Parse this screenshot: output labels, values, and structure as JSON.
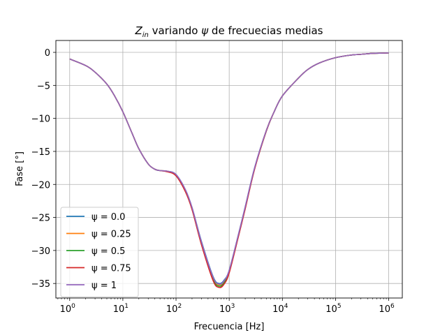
{
  "chart_data": {
    "type": "line",
    "title": {
      "var": "Z",
      "sub": "in",
      "middle": " variando ",
      "greek": "ψ",
      "rest": " de frecuecias medias"
    },
    "xlabel": "Frecuencia [Hz]",
    "ylabel": "Fase [°]",
    "xscale": "log",
    "xlim": [
      0.55,
      1800000
    ],
    "ylim": [
      -37.2,
      1.8
    ],
    "xticks": [
      {
        "value": 1,
        "base": "10",
        "exp": "0"
      },
      {
        "value": 10,
        "base": "10",
        "exp": "1"
      },
      {
        "value": 100,
        "base": "10",
        "exp": "2"
      },
      {
        "value": 1000,
        "base": "10",
        "exp": "3"
      },
      {
        "value": 10000,
        "base": "10",
        "exp": "4"
      },
      {
        "value": 100000,
        "base": "10",
        "exp": "5"
      },
      {
        "value": 1000000,
        "base": "10",
        "exp": "6"
      }
    ],
    "yticks": [
      {
        "value": 0,
        "label": "0"
      },
      {
        "value": -5,
        "label": "−5"
      },
      {
        "value": -10,
        "label": "−10"
      },
      {
        "value": -15,
        "label": "−15"
      },
      {
        "value": -20,
        "label": "−20"
      },
      {
        "value": -25,
        "label": "−25"
      },
      {
        "value": -30,
        "label": "−30"
      },
      {
        "value": -35,
        "label": "−35"
      }
    ],
    "grid": true,
    "legend_placement": "lower-left",
    "x": [
      1,
      2,
      3,
      5,
      7,
      10,
      15,
      20,
      30,
      40,
      50,
      70,
      100,
      150,
      200,
      300,
      500,
      650,
      800,
      1000,
      1500,
      2000,
      3000,
      5000,
      7000,
      10000,
      20000,
      30000,
      50000,
      100000,
      200000,
      300000,
      500000,
      1000000
    ],
    "series": [
      {
        "name": "ψ = 0.0",
        "color": "#1f77b4",
        "values": [
          -1.0,
          -2.0,
          -3.0,
          -4.8,
          -6.6,
          -9.0,
          -12.3,
          -14.6,
          -16.9,
          -17.7,
          -17.9,
          -18.0,
          -18.5,
          -20.8,
          -23.5,
          -28.6,
          -34.0,
          -35.0,
          -34.5,
          -33.0,
          -27.5,
          -23.4,
          -17.5,
          -11.8,
          -9.0,
          -6.6,
          -3.9,
          -2.6,
          -1.6,
          -0.8,
          -0.4,
          -0.3,
          -0.15,
          -0.08
        ]
      },
      {
        "name": "ψ = 0.25",
        "color": "#ff7f0e",
        "values": [
          -1.0,
          -2.0,
          -3.0,
          -4.8,
          -6.6,
          -9.0,
          -12.3,
          -14.6,
          -16.9,
          -17.7,
          -17.9,
          -18.0,
          -18.55,
          -20.9,
          -23.6,
          -28.8,
          -34.2,
          -35.2,
          -34.7,
          -33.1,
          -27.6,
          -23.5,
          -17.6,
          -11.8,
          -9.0,
          -6.6,
          -3.9,
          -2.6,
          -1.6,
          -0.8,
          -0.4,
          -0.3,
          -0.15,
          -0.08
        ]
      },
      {
        "name": "ψ = 0.5",
        "color": "#2ca02c",
        "values": [
          -1.0,
          -2.0,
          -3.0,
          -4.8,
          -6.6,
          -9.0,
          -12.3,
          -14.6,
          -16.9,
          -17.7,
          -17.9,
          -18.05,
          -18.6,
          -21.0,
          -23.7,
          -28.9,
          -34.4,
          -35.4,
          -34.9,
          -33.2,
          -27.7,
          -23.6,
          -17.6,
          -11.9,
          -9.0,
          -6.6,
          -3.9,
          -2.6,
          -1.6,
          -0.8,
          -0.4,
          -0.3,
          -0.15,
          -0.08
        ]
      },
      {
        "name": "ψ = 0.75",
        "color": "#d62728",
        "values": [
          -1.0,
          -2.0,
          -3.0,
          -4.8,
          -6.6,
          -9.0,
          -12.3,
          -14.6,
          -16.9,
          -17.7,
          -17.9,
          -18.1,
          -18.7,
          -21.1,
          -23.8,
          -29.1,
          -34.6,
          -35.6,
          -35.1,
          -33.4,
          -27.8,
          -23.7,
          -17.7,
          -11.9,
          -9.0,
          -6.6,
          -3.9,
          -2.6,
          -1.6,
          -0.8,
          -0.4,
          -0.3,
          -0.15,
          -0.08
        ]
      },
      {
        "name": "ψ = 1",
        "color": "#9467bd",
        "values": [
          -1.0,
          -2.0,
          -3.0,
          -4.8,
          -6.6,
          -9.0,
          -12.3,
          -14.6,
          -16.9,
          -17.7,
          -17.9,
          -18.0,
          -18.5,
          -20.8,
          -23.5,
          -28.7,
          -34.1,
          -35.1,
          -34.6,
          -33.0,
          -27.5,
          -23.4,
          -17.5,
          -11.8,
          -9.0,
          -6.6,
          -3.9,
          -2.6,
          -1.6,
          -0.8,
          -0.4,
          -0.3,
          -0.15,
          -0.08
        ]
      }
    ]
  }
}
